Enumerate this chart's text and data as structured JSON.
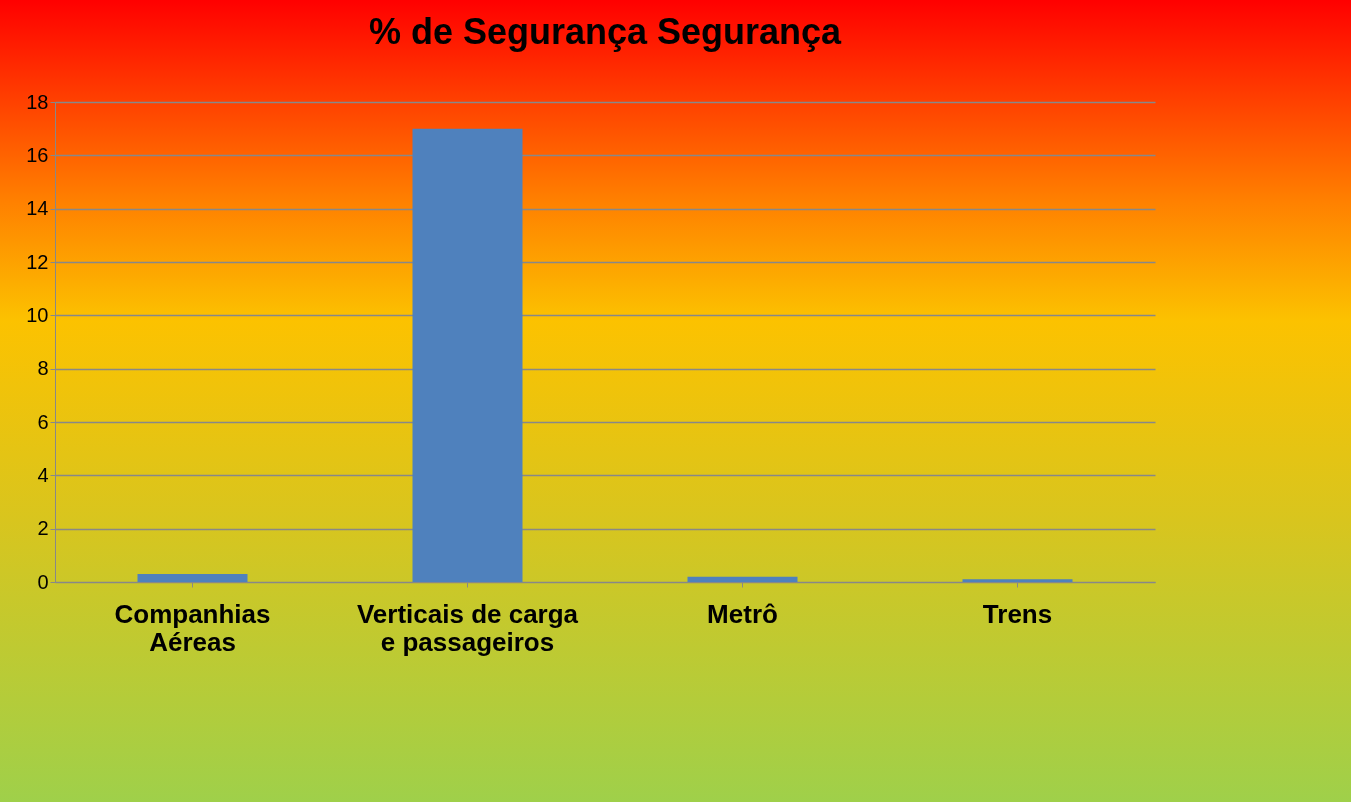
{
  "chart_data": {
    "type": "bar",
    "title": "% de Segurança Segurança",
    "categories": [
      "Companhias Aéreas",
      "Verticais de carga e passageiros",
      "Metrô",
      "Trens"
    ],
    "values": [
      0.3,
      17,
      0.2,
      0.1
    ],
    "color": "#4f81bd",
    "ylim": [
      0,
      18
    ],
    "yticks": [
      0,
      2,
      4,
      6,
      8,
      10,
      12,
      14,
      16,
      18
    ],
    "grid": "y"
  }
}
